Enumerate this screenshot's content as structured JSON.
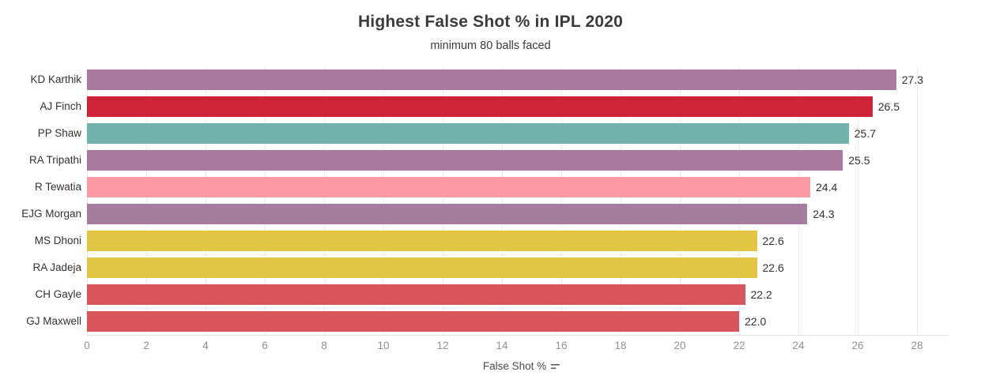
{
  "chart_data": {
    "type": "bar",
    "orientation": "horizontal",
    "title": "Highest False Shot % in IPL 2020",
    "subtitle": "minimum 80 balls faced",
    "xlabel": "False Shot %",
    "ylabel": "",
    "categories": [
      "KD Karthik",
      "AJ Finch",
      "PP Shaw",
      "RA Tripathi",
      "R Tewatia",
      "EJG Morgan",
      "MS Dhoni",
      "RA Jadeja",
      "CH Gayle",
      "GJ Maxwell"
    ],
    "values": [
      27.3,
      26.5,
      25.7,
      25.5,
      24.4,
      24.3,
      22.6,
      22.6,
      22.2,
      22.0
    ],
    "value_labels": [
      "27.3",
      "26.5",
      "25.7",
      "25.5",
      "24.4",
      "24.3",
      "22.6",
      "22.6",
      "22.2",
      "22.0"
    ],
    "bar_colors": [
      "#ab7aa1",
      "#ce2339",
      "#72b2ab",
      "#a87aa0",
      "#fb9aa4",
      "#a57d9f",
      "#e3c544",
      "#e3c544",
      "#d9555c",
      "#d9555c"
    ],
    "xlim": [
      0,
      29
    ],
    "xticks": [
      0,
      2,
      4,
      6,
      8,
      10,
      12,
      14,
      16,
      18,
      20,
      22,
      24,
      26,
      28
    ],
    "grid": true,
    "legend": "none",
    "sort_icon": "sort-descending"
  },
  "colors": {
    "background": "#ffffff",
    "gridline": "#eceaea",
    "axis_line": "#e9e1e1",
    "title_text": "#3b3b3b",
    "label_text": "#333333",
    "tick_text": "#919191",
    "axis_title_text": "#4a4a4a"
  }
}
